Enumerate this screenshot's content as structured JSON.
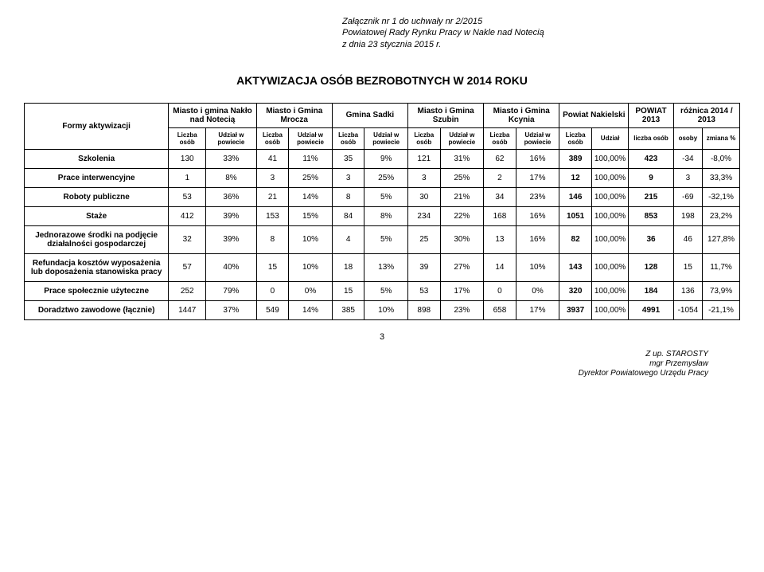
{
  "header": {
    "line1": "Załącznik nr 1 do uchwały nr 2/2015",
    "line2": "Powiatowej Rady Rynku Pracy w Nakle nad Notecią",
    "line3": "z dnia 23 stycznia 2015 r."
  },
  "title": "AKTYWIZACJA OSÓB BEZROBOTNYCH W 2014 ROKU",
  "table": {
    "corner": "Formy aktywizacji",
    "groups": [
      "Miasto i gmina Nakło nad Notecią",
      "Miasto i Gmina Mrocza",
      "Gmina Sadki",
      "Miasto i Gmina Szubin",
      "Miasto i Gmina Kcynia",
      "Powiat Nakielski",
      "POWIAT 2013",
      "różnica 2014 / 2013"
    ],
    "sub": {
      "liczba": "Liczba osób",
      "udzial": "Udział w powiecie",
      "udzial2": "Udział",
      "liczbaosob": "liczba osób",
      "osoby": "osoby",
      "zmiana": "zmiana %"
    },
    "rows": [
      {
        "label": "Szkolenia",
        "c": [
          "130",
          "33%",
          "41",
          "11%",
          "35",
          "9%",
          "121",
          "31%",
          "62",
          "16%",
          "389",
          "100,00%",
          "423",
          "-34",
          "-8,0%"
        ]
      },
      {
        "label": "Prace interwencyjne",
        "c": [
          "1",
          "8%",
          "3",
          "25%",
          "3",
          "25%",
          "3",
          "25%",
          "2",
          "17%",
          "12",
          "100,00%",
          "9",
          "3",
          "33,3%"
        ]
      },
      {
        "label": "Roboty publiczne",
        "c": [
          "53",
          "36%",
          "21",
          "14%",
          "8",
          "5%",
          "30",
          "21%",
          "34",
          "23%",
          "146",
          "100,00%",
          "215",
          "-69",
          "-32,1%"
        ]
      },
      {
        "label": "Staże",
        "c": [
          "412",
          "39%",
          "153",
          "15%",
          "84",
          "8%",
          "234",
          "22%",
          "168",
          "16%",
          "1051",
          "100,00%",
          "853",
          "198",
          "23,2%"
        ]
      },
      {
        "label": "Jednorazowe środki na podjęcie działalności gospodarczej",
        "c": [
          "32",
          "39%",
          "8",
          "10%",
          "4",
          "5%",
          "25",
          "30%",
          "13",
          "16%",
          "82",
          "100,00%",
          "36",
          "46",
          "127,8%"
        ]
      },
      {
        "label": "Refundacja kosztów wyposażenia lub doposażenia stanowiska pracy",
        "c": [
          "57",
          "40%",
          "15",
          "10%",
          "18",
          "13%",
          "39",
          "27%",
          "14",
          "10%",
          "143",
          "100,00%",
          "128",
          "15",
          "11,7%"
        ]
      },
      {
        "label": "Prace społecznie użyteczne",
        "c": [
          "252",
          "79%",
          "0",
          "0%",
          "15",
          "5%",
          "53",
          "17%",
          "0",
          "0%",
          "320",
          "100,00%",
          "184",
          "136",
          "73,9%"
        ]
      },
      {
        "label": "Doradztwo zawodowe (łącznie)",
        "c": [
          "1447",
          "37%",
          "549",
          "14%",
          "385",
          "10%",
          "898",
          "23%",
          "658",
          "17%",
          "3937",
          "100,00%",
          "4991",
          "-1054",
          "-21,1%"
        ]
      }
    ]
  },
  "pageNum": "3",
  "signature": {
    "l1": "Z up. STAROSTY",
    "l2": "mgr Przemysław",
    "l3": "Dyrektor Powiatowego Urzędu Pracy"
  }
}
